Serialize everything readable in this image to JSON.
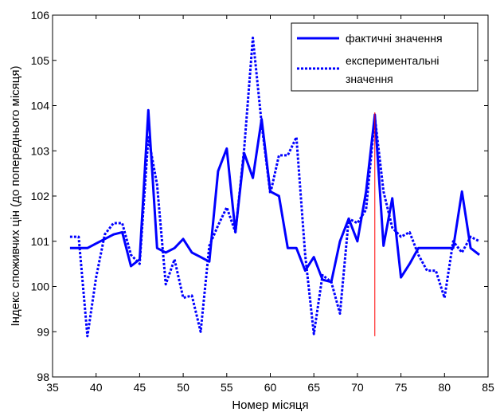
{
  "chart_data": {
    "type": "line",
    "xlabel": "Номер місяця",
    "ylabel": "Індекс споживчих цін (до попереднього місяця)",
    "xlim": [
      35,
      85
    ],
    "ylim": [
      98,
      106
    ],
    "xticks": [
      35,
      40,
      45,
      50,
      55,
      60,
      65,
      70,
      75,
      80,
      85
    ],
    "yticks": [
      98,
      99,
      100,
      101,
      102,
      103,
      104,
      105,
      106
    ],
    "legend_position": "top-right",
    "series": [
      {
        "name": "фактичні значення",
        "style": "solid",
        "color": "#0000ff",
        "x": [
          37,
          38,
          39,
          40,
          41,
          42,
          43,
          44,
          45,
          46,
          47,
          48,
          49,
          50,
          51,
          52,
          53,
          54,
          55,
          56,
          57,
          58,
          59,
          60,
          61,
          62,
          63,
          64,
          65,
          66,
          67,
          68,
          69,
          70,
          71,
          72,
          73,
          74,
          75,
          76,
          77,
          78,
          79,
          80,
          81,
          82,
          83,
          84
        ],
        "values": [
          100.85,
          100.85,
          100.85,
          100.95,
          101.05,
          101.15,
          101.2,
          100.45,
          100.6,
          103.9,
          100.85,
          100.75,
          100.85,
          101.05,
          100.75,
          100.65,
          100.55,
          102.55,
          103.05,
          101.2,
          102.95,
          102.4,
          103.7,
          102.1,
          102.0,
          100.85,
          100.85,
          100.35,
          100.65,
          100.15,
          100.1,
          101.0,
          101.5,
          101.0,
          102.1,
          103.8,
          100.9,
          101.95,
          100.2,
          100.5,
          100.85,
          100.85,
          100.85,
          100.85,
          100.85,
          102.1,
          100.85,
          100.7
        ]
      },
      {
        "name": "експериментальні значення",
        "legend_lines": [
          "експериментальні",
          "значення"
        ],
        "style": "dotted",
        "color": "#0000ff",
        "x": [
          37,
          38,
          39,
          40,
          41,
          42,
          43,
          44,
          45,
          46,
          47,
          48,
          49,
          50,
          51,
          52,
          53,
          54,
          55,
          56,
          57,
          58,
          59,
          60,
          61,
          62,
          63,
          64,
          65,
          66,
          67,
          68,
          69,
          70,
          71,
          72,
          73,
          74,
          75,
          76,
          77,
          78,
          79,
          80,
          81,
          82,
          83,
          84
        ],
        "values": [
          101.1,
          101.1,
          98.9,
          100.2,
          101.15,
          101.4,
          101.4,
          100.7,
          100.5,
          103.3,
          102.25,
          100.05,
          100.6,
          99.75,
          99.8,
          99.0,
          100.9,
          101.35,
          101.75,
          101.2,
          103.05,
          105.5,
          103.6,
          102.05,
          102.9,
          102.9,
          103.3,
          100.7,
          98.95,
          100.25,
          100.1,
          99.4,
          101.5,
          101.4,
          101.7,
          103.75,
          102.1,
          101.3,
          101.1,
          101.2,
          100.7,
          100.35,
          100.35,
          99.75,
          101.0,
          100.75,
          101.1,
          101.0
        ]
      }
    ],
    "marker_line": {
      "x": 72,
      "y_from": 98.9,
      "y_to": 103.85,
      "color": "#ff0000"
    }
  }
}
